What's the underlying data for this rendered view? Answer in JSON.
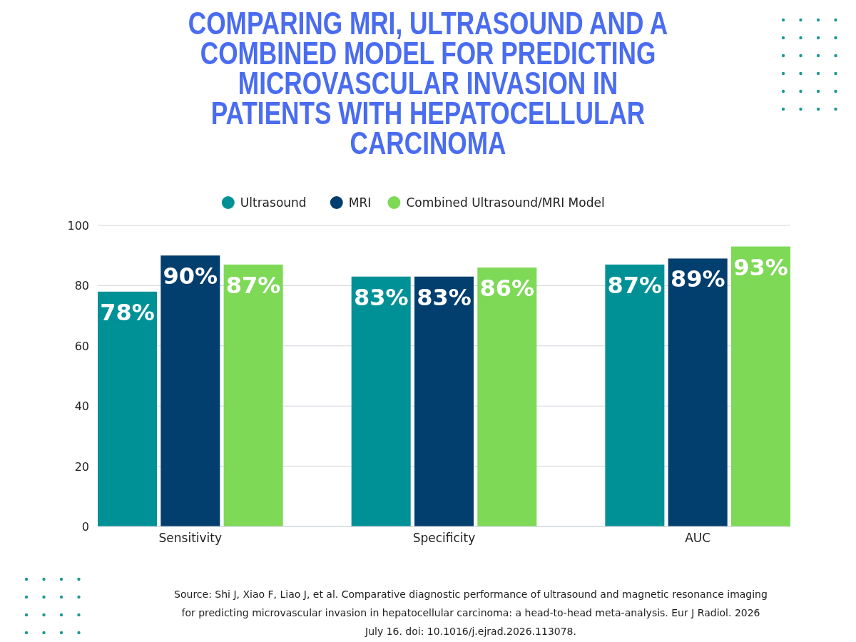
{
  "chart_data": {
    "type": "bar",
    "title": "COMPARING MRI, ULTRASOUND AND A COMBINED MODEL FOR PREDICTING MICROVASCULAR INVASION IN PATIENTS WITH HEPATOCELLULAR CARCINOMA",
    "categories": [
      "Sensitivity",
      "Specificity",
      "AUC"
    ],
    "series": [
      {
        "name": "Ultrasound",
        "color": "#009196",
        "values": [
          78,
          83,
          87
        ],
        "value_labels": [
          "78%",
          "83%",
          "87%"
        ]
      },
      {
        "name": "MRI",
        "color": "#023e6e",
        "values": [
          90,
          83,
          89
        ],
        "value_labels": [
          "90%",
          "83%",
          "89%"
        ]
      },
      {
        "name": "Combined Ultrasound/MRI Model",
        "color": "#7ed957",
        "values": [
          87,
          86,
          93
        ],
        "value_labels": [
          "87%",
          "86%",
          "93%"
        ]
      }
    ],
    "ylim": [
      0,
      100
    ],
    "yticks": [
      0,
      20,
      40,
      60,
      80,
      100
    ],
    "grid": "y",
    "legend": "top",
    "annotations": [
      "Source: Shi J, Xiao F, Liao J, et al. Comparative diagnostic performance of ultrasound and magnetic resonance imaging for predicting microvascular invasion in hepatocellular carcinoma: a head-to-head meta-analysis. Eur J Radiol. 2026 July 16. doi: 10.1016/j.ejrad.2026.113078."
    ]
  }
}
